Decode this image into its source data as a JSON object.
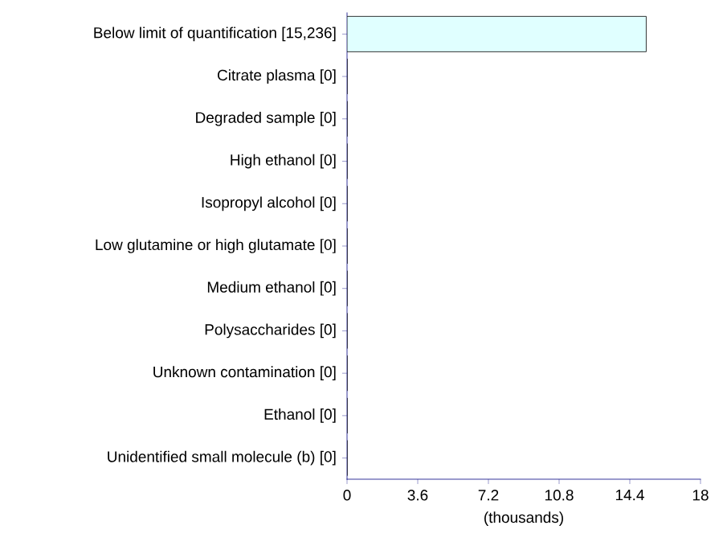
{
  "chart_data": {
    "type": "bar",
    "orientation": "horizontal",
    "xlabel": "(thousands)",
    "categories": [
      "Below limit of quantification [15,236]",
      "Citrate plasma [0]",
      "Degraded sample [0]",
      "High ethanol [0]",
      "Isopropyl alcohol [0]",
      "Low glutamine or high glutamate [0]",
      "Medium ethanol [0]",
      "Polysaccharides [0]",
      "Unknown contamination [0]",
      "Ethanol [0]",
      "Unidentified small molecule (b) [0]"
    ],
    "values": [
      15.236,
      0,
      0,
      0,
      0,
      0,
      0,
      0,
      0,
      0,
      0
    ],
    "color": "#e0ffff",
    "xlim": [
      0,
      18
    ],
    "xticks": [
      0,
      3.6,
      7.2,
      10.8,
      14.4,
      18
    ]
  }
}
